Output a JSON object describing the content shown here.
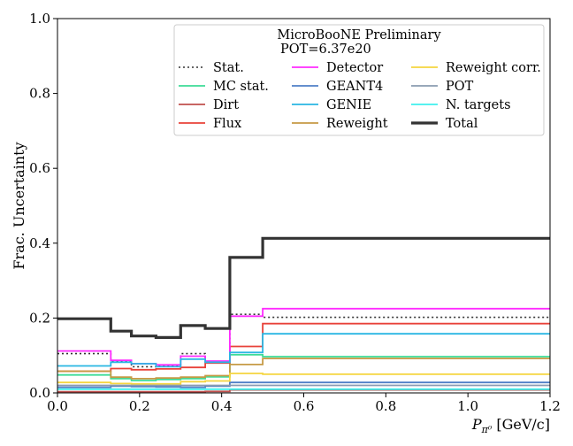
{
  "chart_data": {
    "type": "line",
    "step": true,
    "xlabel": "P",
    "xlabel_subscript": "π⁰",
    "xlabel_unit": " [GeV/c]",
    "ylabel": "Frac. Uncertainty",
    "xlim": [
      0.0,
      1.2
    ],
    "ylim": [
      0.0,
      1.0
    ],
    "xticks": [
      0.0,
      0.2,
      0.4,
      0.6,
      0.8,
      1.0,
      1.2
    ],
    "yticks": [
      0.0,
      0.2,
      0.4,
      0.6,
      0.8,
      1.0
    ],
    "xtick_labels": [
      "0.0",
      "0.2",
      "0.4",
      "0.6",
      "0.8",
      "1.0",
      "1.2"
    ],
    "ytick_labels": [
      "0.0",
      "0.2",
      "0.4",
      "0.6",
      "0.8",
      "1.0"
    ],
    "grid": false,
    "legend_title_lines": [
      "MicroBooNE Preliminary",
      "POT=6.37e20"
    ],
    "legend_position": "top-right",
    "bin_edges": [
      0.0,
      0.13,
      0.18,
      0.24,
      0.3,
      0.36,
      0.42,
      0.5,
      1.2
    ],
    "series": [
      {
        "name": "Stat.",
        "color": "#333333",
        "style": "dotted",
        "width": 1.6,
        "values": [
          0.105,
          0.085,
          0.07,
          0.072,
          0.105,
          0.082,
          0.21,
          0.202
        ]
      },
      {
        "name": "MC stat.",
        "color": "#3ddc97",
        "style": "solid",
        "width": 1.8,
        "values": [
          0.048,
          0.038,
          0.033,
          0.036,
          0.038,
          0.043,
          0.102,
          0.097
        ]
      },
      {
        "name": "Dirt",
        "color": "#c0504d",
        "style": "solid",
        "width": 1.8,
        "values": [
          0.003,
          0.003,
          0.003,
          0.003,
          0.003,
          0.004,
          0.008,
          0.008
        ]
      },
      {
        "name": "Flux",
        "color": "#e8423a",
        "style": "solid",
        "width": 1.8,
        "values": [
          0.058,
          0.065,
          0.062,
          0.064,
          0.068,
          0.08,
          0.124,
          0.185
        ]
      },
      {
        "name": "Detector",
        "color": "#ff2bff",
        "style": "solid",
        "width": 1.8,
        "values": [
          0.112,
          0.087,
          0.078,
          0.075,
          0.098,
          0.085,
          0.205,
          0.225
        ]
      },
      {
        "name": "GEANT4",
        "color": "#4f7fc7",
        "style": "solid",
        "width": 1.8,
        "values": [
          0.015,
          0.018,
          0.017,
          0.016,
          0.015,
          0.018,
          0.028,
          0.028
        ]
      },
      {
        "name": "GENIE",
        "color": "#29b6e3",
        "style": "solid",
        "width": 1.8,
        "values": [
          0.072,
          0.082,
          0.078,
          0.07,
          0.09,
          0.082,
          0.108,
          0.158
        ]
      },
      {
        "name": "Reweight",
        "color": "#c69a45",
        "style": "solid",
        "width": 1.8,
        "values": [
          0.058,
          0.042,
          0.038,
          0.04,
          0.042,
          0.046,
          0.076,
          0.092
        ]
      },
      {
        "name": "Reweight corr.",
        "color": "#f5d53f",
        "style": "solid",
        "width": 1.8,
        "values": [
          0.028,
          0.025,
          0.024,
          0.024,
          0.03,
          0.032,
          0.052,
          0.05
        ]
      },
      {
        "name": "POT",
        "color": "#8a9bb0",
        "style": "solid",
        "width": 1.8,
        "values": [
          0.02,
          0.02,
          0.02,
          0.02,
          0.02,
          0.02,
          0.02,
          0.02
        ]
      },
      {
        "name": "N. targets",
        "color": "#3ef0ee",
        "style": "solid",
        "width": 1.8,
        "values": [
          0.01,
          0.01,
          0.01,
          0.01,
          0.01,
          0.01,
          0.01,
          0.01
        ]
      },
      {
        "name": "Total",
        "color": "#333333",
        "style": "solid",
        "width": 3.2,
        "values": [
          0.198,
          0.165,
          0.152,
          0.148,
          0.18,
          0.172,
          0.362,
          0.413
        ]
      }
    ]
  }
}
